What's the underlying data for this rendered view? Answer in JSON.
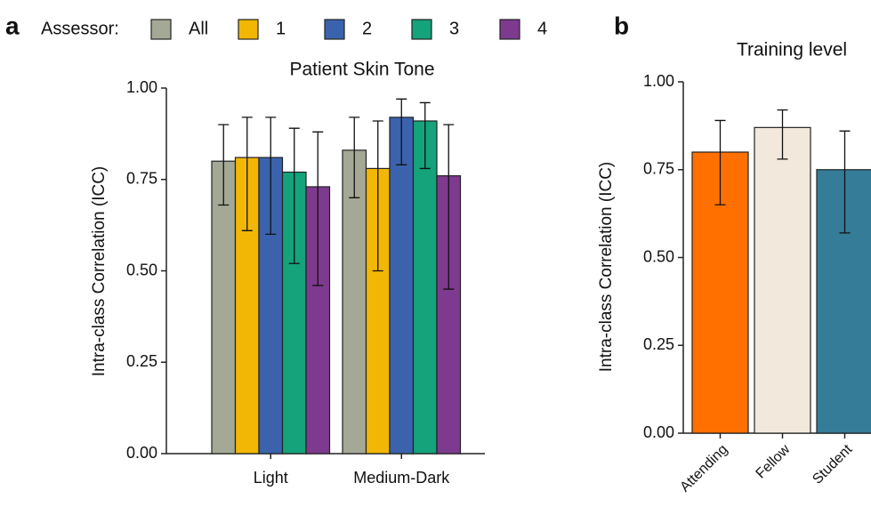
{
  "chart_data": [
    {
      "type": "grouped_bar",
      "panel_label": "a",
      "title": "Patient Skin Tone",
      "legend_title": "Assessor:",
      "y_label": "Intra-class Correlation (ICC)",
      "categories": [
        "Light",
        "Medium-Dark"
      ],
      "series": [
        {
          "name": "All",
          "color": "#a4a996",
          "values": [
            0.8,
            0.83
          ],
          "lower": [
            0.68,
            0.7
          ],
          "upper": [
            0.9,
            0.92
          ]
        },
        {
          "name": "1",
          "color": "#f2b705",
          "values": [
            0.81,
            0.78
          ],
          "lower": [
            0.61,
            0.5
          ],
          "upper": [
            0.92,
            0.91
          ]
        },
        {
          "name": "2",
          "color": "#3b63ad",
          "values": [
            0.81,
            0.92
          ],
          "lower": [
            0.6,
            0.79
          ],
          "upper": [
            0.92,
            0.97
          ]
        },
        {
          "name": "3",
          "color": "#14a37a",
          "values": [
            0.77,
            0.91
          ],
          "lower": [
            0.52,
            0.78
          ],
          "upper": [
            0.89,
            0.96
          ]
        },
        {
          "name": "4",
          "color": "#7e3a8e",
          "values": [
            0.73,
            0.76
          ],
          "lower": [
            0.46,
            0.45
          ],
          "upper": [
            0.88,
            0.9
          ]
        }
      ],
      "ylim": [
        0,
        1
      ],
      "yticks": [
        {
          "value": 0,
          "label": "0.00"
        },
        {
          "value": 0.25,
          "label": "0.25"
        },
        {
          "value": 0.5,
          "label": "0.50"
        },
        {
          "value": 0.75,
          "label": "0.75"
        },
        {
          "value": 1,
          "label": "1.00"
        }
      ]
    },
    {
      "type": "bar",
      "panel_label": "b",
      "title": "Training level",
      "y_label": "Intra-class Correlation (ICC)",
      "categories": [
        "Attending",
        "Fellow",
        "Student"
      ],
      "colors": [
        "#ff7000",
        "#f2e8dc",
        "#347c98"
      ],
      "values": [
        0.8,
        0.87,
        0.75
      ],
      "lower": [
        0.65,
        0.78,
        0.57
      ],
      "upper": [
        0.89,
        0.92,
        0.86
      ],
      "ylim": [
        0,
        1
      ],
      "yticks": [
        {
          "value": 0,
          "label": "0.00"
        },
        {
          "value": 0.25,
          "label": "0.25"
        },
        {
          "value": 0.5,
          "label": "0.50"
        },
        {
          "value": 0.75,
          "label": "0.75"
        },
        {
          "value": 1,
          "label": "1.00"
        }
      ]
    }
  ]
}
